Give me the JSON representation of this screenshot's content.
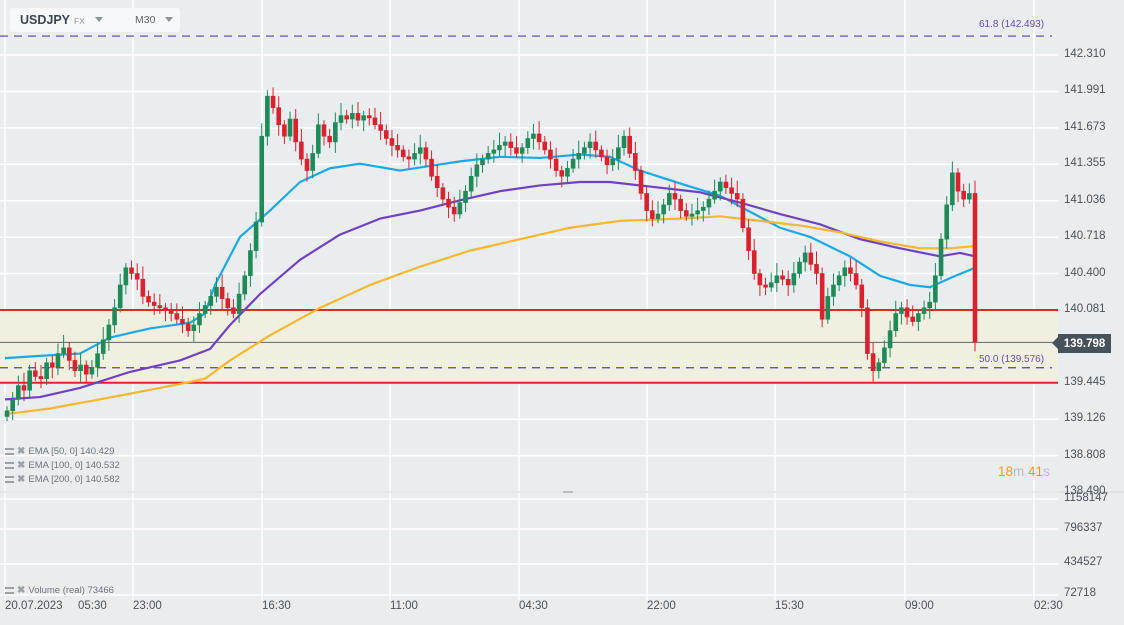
{
  "header": {
    "symbol": "USDJPY",
    "market": "FX",
    "timeframe": "M30"
  },
  "price_axis": {
    "labels": [
      "142.310",
      "141.991",
      "141.673",
      "141.355",
      "141.036",
      "140.718",
      "140.400",
      "140.081",
      "139.798",
      "139.445",
      "139.126",
      "138.808",
      "138.490"
    ],
    "current_price": "139.798"
  },
  "volume_axis": {
    "labels": [
      "1158147",
      "796337",
      "434527",
      "72718"
    ]
  },
  "time_axis": {
    "labels": [
      "20.07.2023",
      "05:30",
      "23:00",
      "16:30",
      "11:00",
      "04:30",
      "22:00",
      "15:30",
      "09:00",
      "02:30"
    ]
  },
  "fibonacci": {
    "level_618": "61.8 (142.493)",
    "level_50": "50.0 (139.576)"
  },
  "indicators": {
    "ema50": {
      "label": "EMA [50, 0] 140.429",
      "color": "#1aa9e8"
    },
    "ema100": {
      "label": "EMA [100, 0] 140.532",
      "color": "#6f42c1"
    },
    "ema200": {
      "label": "EMA [200, 0] 140.582",
      "color": "#fbb72e"
    },
    "volume": {
      "label": "Volume  (real)  73466"
    }
  },
  "countdown": {
    "min": "18",
    "min_unit": "m",
    "sec": "41",
    "sec_unit": "s"
  },
  "colors": {
    "up": "#1e8a5a",
    "down": "#d9222f",
    "zone_fill": "#f1efdf",
    "zone_line": "#e0262b",
    "fib": "#5b3bb5"
  },
  "chart_data": {
    "type": "candlestick",
    "title": "USDJPY FX M30",
    "xlabel": "",
    "ylabel": "",
    "ylim": [
      138.49,
      142.31
    ],
    "grid": true,
    "x_tick_labels": [
      "20.07.2023 05:30",
      "23:00",
      "16:30",
      "11:00",
      "04:30",
      "22:00",
      "15:30",
      "09:00",
      "02:30"
    ],
    "horizontal_lines": [
      {
        "name": "fib 61.8",
        "value": 142.493,
        "style": "dashed"
      },
      {
        "name": "resistance",
        "value": 140.081,
        "style": "solid red"
      },
      {
        "name": "fib 50.0",
        "value": 139.576,
        "style": "dashed"
      },
      {
        "name": "support",
        "value": 139.445,
        "style": "solid red"
      },
      {
        "name": "current price",
        "value": 139.798
      }
    ],
    "closes": [
      139.2,
      139.3,
      139.42,
      139.38,
      139.55,
      139.5,
      139.48,
      139.62,
      139.58,
      139.7,
      139.75,
      139.64,
      139.55,
      139.6,
      139.52,
      139.58,
      139.7,
      139.82,
      139.95,
      140.1,
      140.3,
      140.45,
      140.4,
      140.35,
      140.2,
      140.15,
      140.12,
      140.1,
      140.08,
      140.05,
      140.0,
      139.96,
      139.9,
      139.95,
      140.05,
      140.12,
      140.2,
      140.28,
      140.18,
      140.1,
      140.05,
      140.22,
      140.38,
      140.6,
      140.85,
      141.6,
      141.95,
      141.85,
      141.7,
      141.6,
      141.75,
      141.55,
      141.4,
      141.3,
      141.45,
      141.7,
      141.6,
      141.55,
      141.72,
      141.78,
      141.75,
      141.8,
      141.74,
      141.78,
      141.76,
      141.7,
      141.65,
      141.58,
      141.52,
      141.48,
      141.42,
      141.4,
      141.45,
      141.5,
      141.4,
      141.25,
      141.15,
      141.05,
      140.98,
      140.92,
      141.02,
      141.12,
      141.25,
      141.35,
      141.4,
      141.45,
      141.48,
      141.52,
      141.55,
      141.5,
      141.45,
      141.5,
      141.58,
      141.62,
      141.55,
      141.48,
      141.4,
      141.3,
      141.25,
      141.32,
      141.4,
      141.45,
      141.5,
      141.55,
      141.48,
      141.42,
      141.35,
      141.4,
      141.5,
      141.6,
      141.45,
      141.3,
      141.1,
      140.95,
      140.88,
      140.92,
      141.0,
      141.1,
      141.05,
      140.95,
      140.9,
      140.92,
      140.95,
      140.98,
      141.05,
      141.12,
      141.2,
      141.15,
      141.1,
      141.05,
      140.8,
      140.6,
      140.4,
      140.3,
      140.28,
      140.32,
      140.38,
      140.35,
      140.3,
      140.4,
      140.5,
      140.58,
      140.48,
      140.4,
      140.0,
      140.2,
      140.3,
      140.38,
      140.45,
      140.4,
      140.3,
      140.1,
      139.7,
      139.55,
      139.62,
      139.75,
      139.9,
      140.05,
      140.1,
      140.02,
      139.98,
      140.05,
      140.1,
      140.15,
      140.38,
      140.7,
      141.0,
      141.28,
      141.12,
      141.05,
      141.1,
      139.8
    ],
    "series": [
      {
        "name": "EMA 50",
        "color": "#1aa9e8",
        "last": 140.429,
        "points": [
          [
            5,
            139.66
          ],
          [
            40,
            139.68
          ],
          [
            80,
            139.7
          ],
          [
            110,
            139.84
          ],
          [
            150,
            139.92
          ],
          [
            190,
            139.97
          ],
          [
            205,
            140.05
          ],
          [
            215,
            140.3
          ],
          [
            240,
            140.72
          ],
          [
            270,
            140.95
          ],
          [
            300,
            141.2
          ],
          [
            330,
            141.32
          ],
          [
            360,
            141.36
          ],
          [
            400,
            141.3
          ],
          [
            430,
            141.34
          ],
          [
            460,
            141.38
          ],
          [
            500,
            141.42
          ],
          [
            540,
            141.41
          ],
          [
            580,
            141.44
          ],
          [
            610,
            141.42
          ],
          [
            640,
            141.3
          ],
          [
            690,
            141.16
          ],
          [
            720,
            141.08
          ],
          [
            750,
            140.94
          ],
          [
            780,
            140.8
          ],
          [
            810,
            140.72
          ],
          [
            850,
            140.55
          ],
          [
            880,
            140.38
          ],
          [
            910,
            140.3
          ],
          [
            930,
            140.28
          ],
          [
            950,
            140.36
          ],
          [
            975,
            140.45
          ]
        ]
      },
      {
        "name": "EMA 100",
        "color": "#6f42c1",
        "last": 140.532,
        "points": [
          [
            5,
            139.3
          ],
          [
            40,
            139.32
          ],
          [
            80,
            139.4
          ],
          [
            130,
            139.54
          ],
          [
            180,
            139.64
          ],
          [
            210,
            139.74
          ],
          [
            230,
            139.95
          ],
          [
            260,
            140.22
          ],
          [
            300,
            140.52
          ],
          [
            340,
            140.74
          ],
          [
            380,
            140.88
          ],
          [
            420,
            140.95
          ],
          [
            460,
            141.04
          ],
          [
            500,
            141.12
          ],
          [
            540,
            141.17
          ],
          [
            580,
            141.2
          ],
          [
            610,
            141.2
          ],
          [
            650,
            141.16
          ],
          [
            700,
            141.11
          ],
          [
            740,
            141.02
          ],
          [
            780,
            140.92
          ],
          [
            820,
            140.83
          ],
          [
            860,
            140.7
          ],
          [
            900,
            140.62
          ],
          [
            940,
            140.55
          ],
          [
            960,
            140.58
          ],
          [
            975,
            140.55
          ]
        ]
      },
      {
        "name": "EMA 200",
        "color": "#fbb72e",
        "last": 140.582,
        "points": [
          [
            5,
            139.17
          ],
          [
            50,
            139.22
          ],
          [
            100,
            139.3
          ],
          [
            160,
            139.4
          ],
          [
            205,
            139.48
          ],
          [
            230,
            139.64
          ],
          [
            270,
            139.86
          ],
          [
            320,
            140.1
          ],
          [
            370,
            140.3
          ],
          [
            420,
            140.46
          ],
          [
            470,
            140.6
          ],
          [
            520,
            140.7
          ],
          [
            570,
            140.8
          ],
          [
            620,
            140.86
          ],
          [
            680,
            140.88
          ],
          [
            720,
            140.9
          ],
          [
            760,
            140.86
          ],
          [
            800,
            140.82
          ],
          [
            840,
            140.76
          ],
          [
            880,
            140.68
          ],
          [
            920,
            140.62
          ],
          [
            950,
            140.62
          ],
          [
            975,
            140.64
          ]
        ]
      }
    ]
  }
}
